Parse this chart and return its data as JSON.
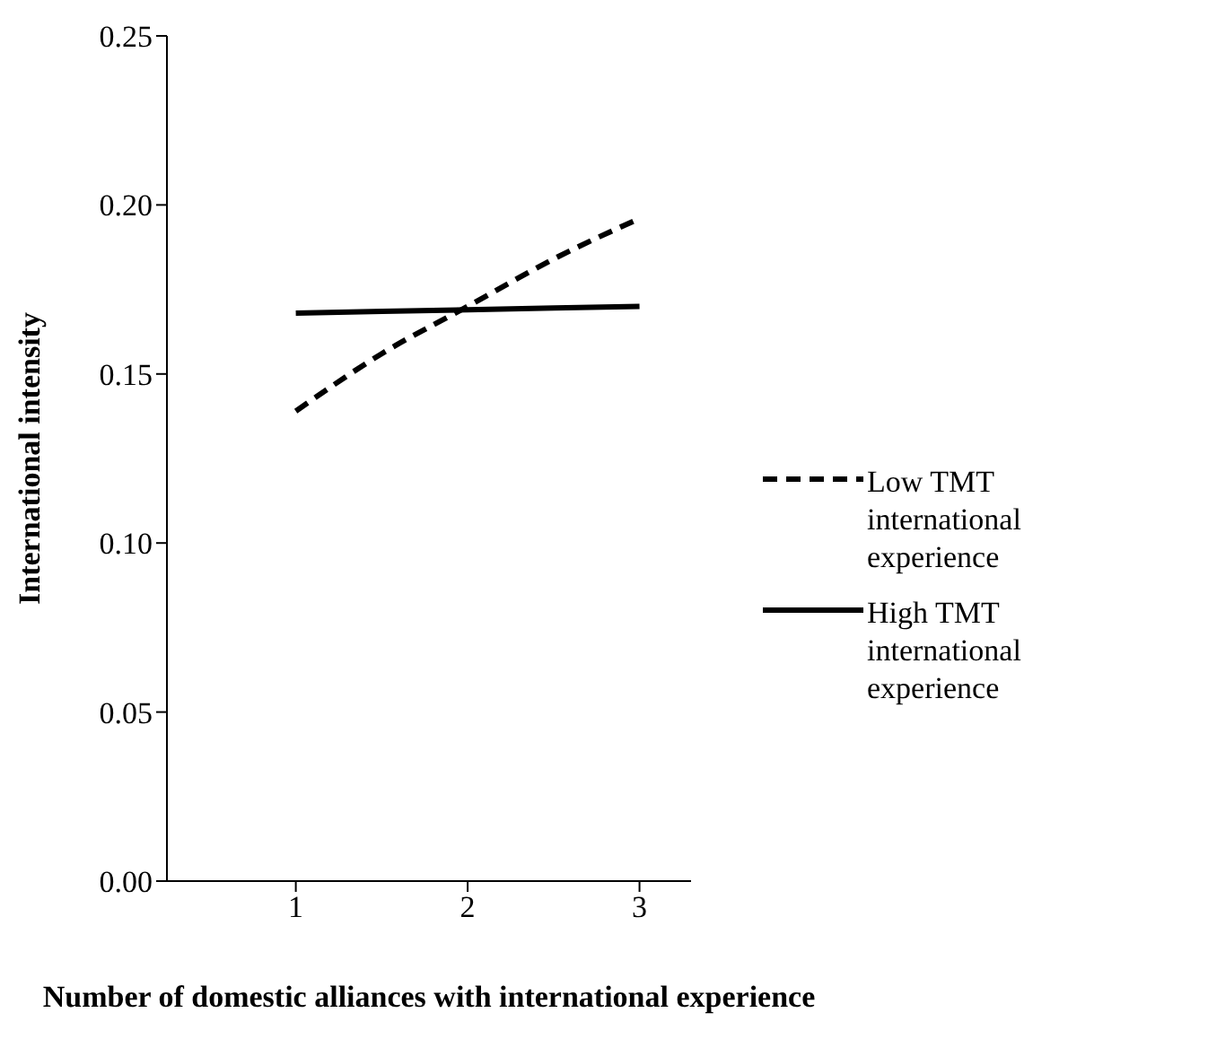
{
  "chart_data": {
    "type": "line",
    "xlabel": "Number of domestic alliances with international experience",
    "ylabel": "International intensity",
    "xlim": [
      0.25,
      3.3
    ],
    "xticks": [
      1,
      2,
      3
    ],
    "ylim": [
      0,
      0.25
    ],
    "yticks": [
      {
        "value": 0,
        "label": "0.00"
      },
      {
        "value": 0.05,
        "label": "0.05"
      },
      {
        "value": 0.1,
        "label": "0.10"
      },
      {
        "value": 0.15,
        "label": "0.15"
      },
      {
        "value": 0.2,
        "label": "0.20"
      },
      {
        "value": 0.25,
        "label": "0.25"
      }
    ],
    "grid": false,
    "legend": "right",
    "marker": "none",
    "series": [
      {
        "name": "Low TMT international experience",
        "color": "#000000",
        "line_style": "dashed",
        "x": [
          1,
          1.5,
          2,
          2.5,
          3
        ],
        "values": [
          0.139,
          0.156,
          0.17,
          0.184,
          0.196
        ]
      },
      {
        "name": "High TMT international experience",
        "color": "#000000",
        "line_style": "solid",
        "x": [
          1,
          2,
          3
        ],
        "values": [
          0.168,
          0.169,
          0.17
        ]
      }
    ]
  }
}
